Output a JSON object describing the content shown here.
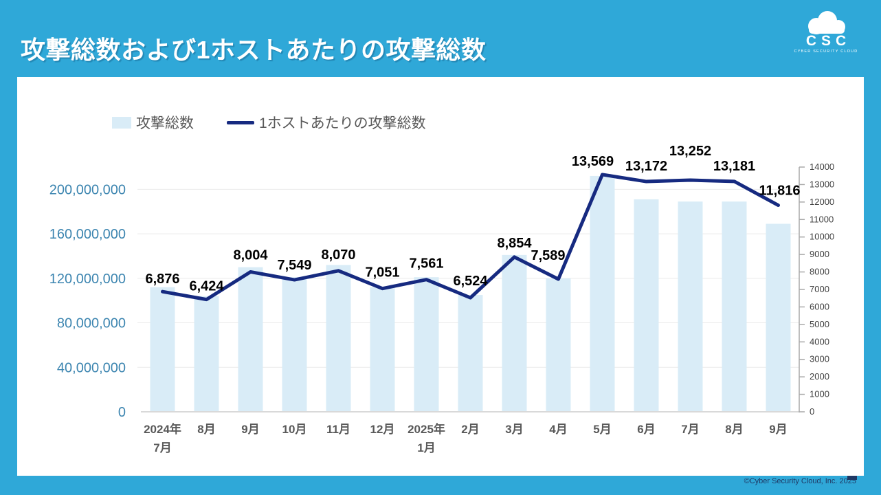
{
  "header": {
    "title": "攻撃総数および1ホストあたりの攻撃総数"
  },
  "logo": {
    "icon": "cloud-icon",
    "acronym": "CSC",
    "subtitle": "CYBER SECURITY CLOUD"
  },
  "legend": [
    {
      "label": "攻撃総数",
      "swatch": "bar"
    },
    {
      "label": "1ホストあたりの攻撃総数",
      "swatch": "line"
    }
  ],
  "chart_data": {
    "type": "bar+line",
    "title": "攻撃総数および1ホストあたりの攻撃総数",
    "categories": [
      [
        "2024年",
        "7月"
      ],
      [
        "8月"
      ],
      [
        "9月"
      ],
      [
        "10月"
      ],
      [
        "11月"
      ],
      [
        "12月"
      ],
      [
        "2025年",
        "1月"
      ],
      [
        "2月"
      ],
      [
        "3月"
      ],
      [
        "4月"
      ],
      [
        "5月"
      ],
      [
        "6月"
      ],
      [
        "7月"
      ],
      [
        "8月"
      ],
      [
        "9月"
      ]
    ],
    "series": [
      {
        "name": "攻撃総数",
        "type": "bar",
        "axis": "left",
        "values": [
          112000000,
          104000000,
          130000000,
          121000000,
          132000000,
          112000000,
          121000000,
          105000000,
          141000000,
          120000000,
          212000000,
          191000000,
          189000000,
          189000000,
          169000000
        ]
      },
      {
        "name": "1ホストあたりの攻撃総数",
        "type": "line",
        "axis": "right",
        "values": [
          6876,
          6424,
          8004,
          7549,
          8070,
          7051,
          7561,
          6524,
          8854,
          7589,
          13569,
          13172,
          13252,
          13181,
          11816
        ],
        "data_labels": [
          "6,876",
          "6,424",
          "8,004",
          "7,549",
          "8,070",
          "7,051",
          "7,561",
          "6,524",
          "8,854",
          "7,589",
          "13,569",
          "13,172",
          "13,252",
          "13,181",
          "11,816"
        ]
      }
    ],
    "left_axis": {
      "range": [
        0,
        220000000
      ],
      "tick_values": [
        0,
        40000000,
        80000000,
        120000000,
        160000000,
        200000000
      ],
      "tick_labels": [
        "0",
        "40,000,000",
        "80,000,000",
        "120,000,000",
        "160,000,000",
        "200,000,000"
      ]
    },
    "right_axis": {
      "range": [
        0,
        14000
      ],
      "step": 1000,
      "tick_labels": [
        "0",
        "1000",
        "2000",
        "3000",
        "4000",
        "5000",
        "6000",
        "7000",
        "8000",
        "9000",
        "10000",
        "11000",
        "12000",
        "13000",
        "14000"
      ]
    },
    "legend_position": "top-left",
    "grid": "horizontal"
  },
  "footer": {
    "copyright": "©Cyber Security Cloud, Inc. 2025"
  },
  "colors": {
    "accent_cyan": "#2FA8D8",
    "bar_fill": "#D9ECF7",
    "line_navy": "#162A80",
    "left_axis_text": "#3C85B0",
    "right_axis_text": "#404040",
    "x_label_text": "#595959",
    "data_label_text": "#000000",
    "gridline": "#EAEAEA",
    "baseline": "#D9D9D9",
    "right_axis_line": "#A9A9A9",
    "footer_text": "#1F3864"
  }
}
